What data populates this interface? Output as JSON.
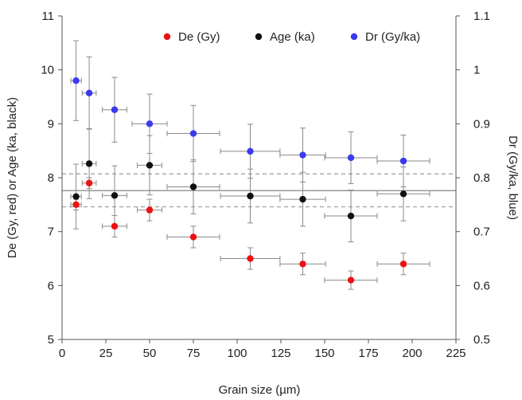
{
  "chart_data": {
    "type": "scatter",
    "xlabel": "Grain size (µm)",
    "ylabel_left": "De (Gy, red) or Age (ka, black)",
    "ylabel_right": "Dr (Gy/ka, blue)",
    "xlim": [
      0,
      225
    ],
    "xticks": [
      "0",
      "25",
      "50",
      "75",
      "100",
      "125",
      "150",
      "175",
      "200",
      "225"
    ],
    "ylim_left": [
      5,
      11
    ],
    "yticks_left": [
      "5",
      "6",
      "7",
      "8",
      "9",
      "10",
      "11"
    ],
    "ylim_right": [
      0.5,
      1.1
    ],
    "yticks_right": [
      "0.5",
      "0.6",
      "0.7",
      "0.8",
      "0.9",
      "1",
      "1.1"
    ],
    "grid": false,
    "legend_position": "top-right",
    "reference_lines": {
      "mean_age": 7.76,
      "upper_bound": 8.07,
      "lower_bound": 7.46
    },
    "series": [
      {
        "name": "De (Gy)",
        "axis": "left",
        "color": "#ee1111",
        "points": [
          {
            "x": 8,
            "y": 7.5,
            "xerr": 3,
            "yerr": 0.1
          },
          {
            "x": 15.5,
            "y": 7.9,
            "xerr": 4,
            "yerr": 0.1
          },
          {
            "x": 30,
            "y": 7.1,
            "xerr": 7,
            "yerr": 0.2
          },
          {
            "x": 50,
            "y": 7.4,
            "xerr": 7,
            "yerr": 0.2
          },
          {
            "x": 75,
            "y": 6.9,
            "xerr": 15,
            "yerr": 0.2
          },
          {
            "x": 107.5,
            "y": 6.5,
            "xerr": 17,
            "yerr": 0.2
          },
          {
            "x": 137.5,
            "y": 6.4,
            "xerr": 13,
            "yerr": 0.2
          },
          {
            "x": 165,
            "y": 6.1,
            "xerr": 15,
            "yerr": 0.17
          },
          {
            "x": 195,
            "y": 6.4,
            "xerr": 15,
            "yerr": 0.2
          }
        ]
      },
      {
        "name": "Age (ka)",
        "axis": "left",
        "color": "#111111",
        "points": [
          {
            "x": 8,
            "y": 7.65,
            "xerr": 3,
            "yerr": 0.6
          },
          {
            "x": 15.5,
            "y": 8.26,
            "xerr": 4,
            "yerr": 0.65
          },
          {
            "x": 30,
            "y": 7.67,
            "xerr": 7,
            "yerr": 0.55
          },
          {
            "x": 50,
            "y": 8.23,
            "xerr": 7,
            "yerr": 0.55
          },
          {
            "x": 75,
            "y": 7.83,
            "xerr": 15,
            "yerr": 0.5
          },
          {
            "x": 107.5,
            "y": 7.66,
            "xerr": 17,
            "yerr": 0.5
          },
          {
            "x": 137.5,
            "y": 7.6,
            "xerr": 13,
            "yerr": 0.5
          },
          {
            "x": 165,
            "y": 7.29,
            "xerr": 15,
            "yerr": 0.48
          },
          {
            "x": 195,
            "y": 7.7,
            "xerr": 15,
            "yerr": 0.5
          }
        ]
      },
      {
        "name": "Dr (Gy/ka)",
        "axis": "right",
        "color": "#3a3aee",
        "points": [
          {
            "x": 8,
            "y": 0.98,
            "xerr": 3,
            "yerr": 0.074
          },
          {
            "x": 15.5,
            "y": 0.957,
            "xerr": 4,
            "yerr": 0.067
          },
          {
            "x": 30,
            "y": 0.926,
            "xerr": 7,
            "yerr": 0.06
          },
          {
            "x": 50,
            "y": 0.9,
            "xerr": 10,
            "yerr": 0.055
          },
          {
            "x": 75,
            "y": 0.882,
            "xerr": 15,
            "yerr": 0.052
          },
          {
            "x": 107.5,
            "y": 0.849,
            "xerr": 17,
            "yerr": 0.05
          },
          {
            "x": 137.5,
            "y": 0.842,
            "xerr": 13,
            "yerr": 0.05
          },
          {
            "x": 165,
            "y": 0.837,
            "xerr": 15,
            "yerr": 0.048
          },
          {
            "x": 195,
            "y": 0.831,
            "xerr": 15,
            "yerr": 0.048
          }
        ]
      }
    ]
  }
}
